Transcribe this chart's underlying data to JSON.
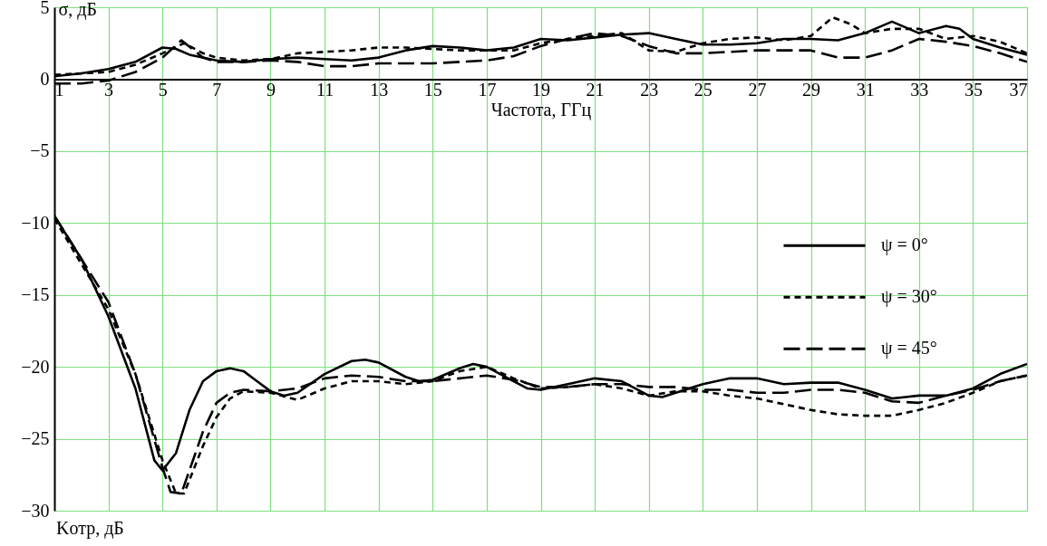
{
  "chart_data": {
    "type": "line",
    "ylabel": "σ, дБ",
    "xlabel": "Частота, ГГц",
    "annotations": [
      "Kотр, дБ"
    ],
    "xlim": [
      1,
      37
    ],
    "ylim": [
      -30,
      5
    ],
    "xticks": [
      1,
      3,
      5,
      7,
      9,
      11,
      13,
      15,
      17,
      19,
      21,
      23,
      25,
      27,
      29,
      31,
      33,
      35,
      37
    ],
    "yticks": [
      5,
      0,
      -5,
      -10,
      -15,
      -20,
      -25,
      -30
    ],
    "grid": true,
    "legend": "right",
    "series": [
      {
        "name": "ψ = 0°",
        "color": "#000000",
        "line_style": "solid",
        "x": [
          1,
          2,
          3,
          4,
          4.7,
          5,
          5.5,
          6,
          6.5,
          7,
          7.5,
          8,
          8.5,
          9,
          9.5,
          10,
          11,
          12,
          12.5,
          13,
          14,
          14.5,
          15,
          16,
          16.5,
          17,
          18,
          18.5,
          19,
          20,
          21,
          22,
          23,
          23.5,
          24,
          25,
          26,
          27,
          28,
          29,
          30,
          31,
          32,
          32.5,
          33,
          34,
          35,
          36,
          37
        ],
        "values": [
          -9.5,
          -12.5,
          -16.5,
          -21.5,
          -26.5,
          -27.2,
          -26,
          -23,
          -21,
          -20.3,
          -20.1,
          -20.3,
          -21,
          -21.7,
          -22,
          -21.8,
          -20.5,
          -19.6,
          -19.5,
          -19.7,
          -20.7,
          -21,
          -20.9,
          -20.1,
          -19.8,
          -20,
          -21,
          -21.5,
          -21.6,
          -21.2,
          -20.8,
          -21,
          -22,
          -22.1,
          -21.8,
          -21.2,
          -20.8,
          -20.8,
          -21.2,
          -21.1,
          -21.1,
          -21.6,
          -22.2,
          -22.1,
          -22,
          -22,
          -21.5,
          -20.5,
          -19.8
        ]
      },
      {
        "name": "ψ = 30°",
        "color": "#000000",
        "line_style": "dotted",
        "x": [
          1,
          3,
          4,
          5,
          5.5,
          5.8,
          6.5,
          7,
          7.5,
          8,
          9,
          10,
          11,
          12,
          13,
          14,
          15,
          16,
          17,
          18,
          19,
          20,
          21,
          22,
          23,
          24,
          25,
          26,
          27,
          28,
          29,
          30,
          31,
          32,
          33,
          34,
          35,
          36,
          37
        ],
        "values": [
          -9.7,
          -16,
          -20.5,
          -26.5,
          -28.8,
          -28.8,
          -25.5,
          -23.5,
          -22.2,
          -21.7,
          -21.8,
          -22.3,
          -21.5,
          -21,
          -21,
          -21.2,
          -21,
          -20.3,
          -20,
          -20.8,
          -21.5,
          -21.4,
          -21.2,
          -21.5,
          -22,
          -21.7,
          -21.7,
          -22,
          -22.2,
          -22.6,
          -23,
          -23.3,
          -23.4,
          -23.4,
          -23,
          -22.5,
          -21.8,
          -21,
          -20.6
        ]
      },
      {
        "name": "ψ = 45°",
        "color": "#000000",
        "line_style": "dashed",
        "x": [
          1,
          3,
          4,
          5,
          5.3,
          5.7,
          6.5,
          7,
          7.5,
          8,
          9,
          10,
          11,
          12,
          13,
          14,
          15,
          16,
          17,
          18,
          19,
          20,
          21,
          22,
          23,
          24,
          25,
          26,
          27,
          28,
          29,
          30,
          31,
          32,
          33,
          34,
          35,
          36,
          37
        ],
        "values": [
          -9.5,
          -15.5,
          -20.5,
          -27,
          -28.7,
          -28.8,
          -24.5,
          -22.5,
          -21.8,
          -21.6,
          -21.7,
          -21.5,
          -20.8,
          -20.6,
          -20.7,
          -21,
          -21,
          -20.8,
          -20.6,
          -20.9,
          -21.4,
          -21.4,
          -21.2,
          -21.2,
          -21.4,
          -21.4,
          -21.6,
          -21.6,
          -21.8,
          -21.8,
          -21.6,
          -21.6,
          -21.8,
          -22.4,
          -22.5,
          -22,
          -21.6,
          -21,
          -20.6
        ]
      },
      {
        "color": "#000000",
        "line_style": "solid",
        "x": [
          1,
          2,
          3,
          4,
          5,
          5.5,
          6,
          7,
          8,
          9,
          10,
          11,
          12,
          13,
          14,
          15,
          16,
          17,
          18,
          19,
          20,
          21,
          22,
          23,
          24,
          25,
          26,
          27,
          28,
          29,
          30,
          31,
          32,
          33,
          34,
          34.5,
          35,
          36,
          37
        ],
        "values": [
          0.2,
          0.4,
          0.7,
          1.2,
          2.2,
          2.1,
          1.7,
          1.3,
          1.2,
          1.4,
          1.5,
          1.4,
          1.3,
          1.5,
          2,
          2.3,
          2.2,
          2,
          2.2,
          2.8,
          2.7,
          2.9,
          3.1,
          3.2,
          2.8,
          2.4,
          2.4,
          2.5,
          2.8,
          2.8,
          2.7,
          3.2,
          4,
          3.2,
          3.7,
          3.5,
          2.8,
          2.2,
          1.7
        ]
      },
      {
        "color": "#000000",
        "line_style": "dotted",
        "x": [
          1,
          3,
          4,
          5,
          5.8,
          6.5,
          7,
          8,
          9,
          10,
          11,
          12,
          13,
          14,
          15,
          16,
          17,
          18,
          19,
          20,
          21,
          22,
          23,
          24,
          25,
          26,
          27,
          28,
          29,
          29.8,
          30.5,
          31,
          32,
          33,
          34,
          35,
          36,
          37
        ],
        "values": [
          0.3,
          0.5,
          1,
          1.8,
          2.5,
          1.8,
          1.5,
          1.3,
          1.4,
          1.8,
          1.9,
          2,
          2.2,
          2.2,
          2.1,
          2,
          2,
          2,
          2.5,
          2.8,
          3,
          3.2,
          2,
          1.9,
          2.5,
          2.8,
          2.9,
          2.7,
          3,
          4.3,
          3.8,
          3.2,
          3.5,
          3.5,
          2.8,
          3,
          2.6,
          1.8
        ]
      },
      {
        "color": "#000000",
        "line_style": "dashed",
        "x": [
          1,
          2,
          3,
          4,
          5,
          5.7,
          6.5,
          7,
          8,
          9,
          10,
          11,
          12,
          13,
          14,
          15,
          16,
          17,
          18,
          19,
          20,
          21,
          22,
          23,
          24,
          25,
          26,
          27,
          28,
          29,
          30,
          31,
          32,
          33,
          34,
          35,
          36,
          37
        ],
        "values": [
          -0.3,
          -0.3,
          -0.1,
          0.5,
          1.5,
          2.7,
          1.5,
          1.2,
          1.2,
          1.3,
          1.2,
          0.9,
          0.9,
          1.1,
          1.1,
          1.1,
          1.2,
          1.3,
          1.6,
          2.3,
          2.8,
          3.2,
          3,
          2.3,
          1.8,
          1.8,
          1.9,
          2,
          2,
          2,
          1.5,
          1.5,
          2,
          2.8,
          2.6,
          2.3,
          1.8,
          1.2
        ]
      }
    ]
  }
}
